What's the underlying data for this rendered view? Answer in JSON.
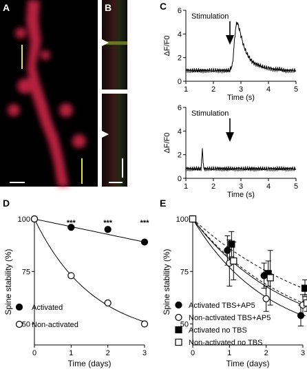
{
  "panels": {
    "A": {
      "label": "A",
      "marker_1": "1",
      "marker_0": "0"
    },
    "B": {
      "label": "B"
    }
  },
  "chart_data": [
    {
      "id": "C-top",
      "panel_label": "C",
      "type": "line",
      "xlabel": "Time (s)",
      "ylabel": "ΔF/F0",
      "xlim": [
        1,
        5
      ],
      "ylim": [
        0,
        6
      ],
      "xticks": [
        1,
        2,
        3,
        4,
        5
      ],
      "yticks": [
        0,
        2,
        4,
        6
      ],
      "annotation": "Stimulation",
      "annotation_x": 2.6,
      "series": [
        {
          "x": [
            1.0,
            1.2,
            1.4,
            1.6,
            1.8,
            2.0,
            2.2,
            2.4,
            2.6,
            2.7,
            2.75,
            2.8,
            2.85,
            2.9,
            3.0,
            3.1,
            3.2,
            3.3,
            3.4,
            3.5,
            3.6,
            3.8,
            4.0,
            4.2,
            4.4,
            4.6,
            4.8,
            5.0
          ],
          "values": [
            0.9,
            0.9,
            0.9,
            0.9,
            0.9,
            0.9,
            0.9,
            0.9,
            0.9,
            1.5,
            3.0,
            4.3,
            5.0,
            4.8,
            3.9,
            3.0,
            2.4,
            2.0,
            1.7,
            1.5,
            1.4,
            1.2,
            1.1,
            1.0,
            1.0,
            0.9,
            0.9,
            0.9
          ]
        }
      ]
    },
    {
      "id": "C-bottom",
      "type": "line",
      "xlabel": "Time (s)",
      "ylabel": "ΔF/F0",
      "xlim": [
        1,
        5
      ],
      "ylim": [
        0,
        6
      ],
      "xticks": [
        1,
        2,
        3,
        4,
        5
      ],
      "yticks": [
        0,
        2,
        4,
        6
      ],
      "annotation": "Stimulation",
      "annotation_x": 2.6,
      "series": [
        {
          "x": [
            1.0,
            1.2,
            1.4,
            1.55,
            1.6,
            1.65,
            1.8,
            2.0,
            2.2,
            2.4,
            2.6,
            2.8,
            3.0,
            3.2,
            3.4,
            3.6,
            3.8,
            4.0,
            4.2,
            4.4,
            4.6,
            4.8,
            5.0
          ],
          "values": [
            0.8,
            0.8,
            0.8,
            0.8,
            2.4,
            0.8,
            0.8,
            0.8,
            0.8,
            0.8,
            0.8,
            0.8,
            0.8,
            0.8,
            0.8,
            0.8,
            0.8,
            0.8,
            0.8,
            0.8,
            0.8,
            0.8,
            0.8
          ]
        }
      ]
    },
    {
      "id": "D",
      "panel_label": "D",
      "type": "scatter",
      "xlabel": "Time (days)",
      "ylabel": "Spine stability (%)",
      "xlim": [
        0,
        3
      ],
      "ylim": [
        40,
        100
      ],
      "xticks": [
        0,
        1,
        2,
        3
      ],
      "yticks": [
        50,
        75,
        100
      ],
      "significance": "***",
      "significance_at": [
        1,
        2,
        3
      ],
      "series": [
        {
          "name": "Activated",
          "marker": "filled-circle",
          "x": [
            0,
            1,
            2,
            3
          ],
          "values": [
            100,
            96,
            95,
            89
          ]
        },
        {
          "name": "Non-activated",
          "marker": "open-circle",
          "x": [
            0,
            1,
            2,
            3
          ],
          "values": [
            100,
            73,
            60,
            50
          ]
        }
      ],
      "legend_placement": "bottom-left"
    },
    {
      "id": "E",
      "panel_label": "E",
      "type": "scatter",
      "xlabel": "Time (days)",
      "ylabel": "Spine stability (%)",
      "xlim": [
        0,
        3
      ],
      "ylim": [
        40,
        100
      ],
      "xticks": [
        0,
        1,
        2,
        3
      ],
      "yticks": [
        50,
        75,
        100
      ],
      "series": [
        {
          "name": "Activated TBS+AP5",
          "marker": "filled-circle",
          "x": [
            0,
            1,
            2,
            3
          ],
          "values": [
            100,
            85,
            73,
            54
          ],
          "error": [
            0,
            7,
            6,
            5
          ]
        },
        {
          "name": "Non-activated TBS+AP5",
          "marker": "open-circle",
          "x": [
            0,
            1,
            2,
            3
          ],
          "values": [
            100,
            79,
            62,
            59
          ],
          "error": [
            0,
            11,
            6,
            5
          ]
        },
        {
          "name": "Activated no TBS",
          "marker": "filled-square",
          "x": [
            0,
            1,
            2,
            3
          ],
          "values": [
            100,
            88,
            74,
            67
          ],
          "error": [
            0,
            6,
            6,
            4
          ]
        },
        {
          "name": "Non-activated no TBS",
          "marker": "open-square",
          "x": [
            0,
            1,
            2,
            3
          ],
          "values": [
            100,
            80,
            72,
            60
          ],
          "error": [
            0,
            9,
            13,
            4
          ]
        }
      ],
      "legend_placement": "bottom-left"
    }
  ]
}
